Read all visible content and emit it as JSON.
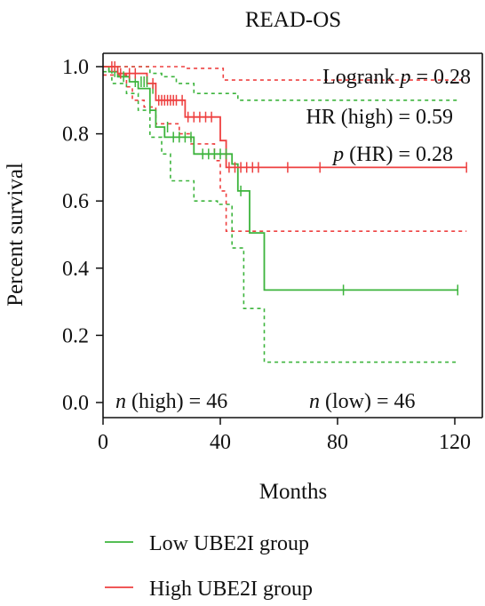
{
  "chart_data": {
    "type": "line",
    "title": "READ-OS",
    "xlabel": "Months",
    "ylabel": "Percent survival",
    "xlim": [
      0,
      125
    ],
    "ylim": [
      0,
      1.05
    ],
    "x_ticks": [
      0,
      40,
      80,
      120
    ],
    "y_ticks": [
      0.0,
      0.2,
      0.4,
      0.6,
      0.8,
      1.0
    ],
    "x_tick_labels": [
      "0",
      "40",
      "80",
      "120"
    ],
    "y_tick_labels": [
      "0.0",
      "0.2",
      "0.4",
      "0.6",
      "0.8",
      "1.0"
    ],
    "grid": false,
    "legend_position": "bottom",
    "annotations": {
      "logrank_prefix": "Logrank ",
      "logrank_p": "p",
      "logrank_suffix": " = 0.28",
      "hr": "HR (high) = 0.59",
      "phr_p": "p",
      "phr_suffix": " (HR) = 0.28",
      "n_high_n": "n",
      "n_high_suffix": " (high) = 46",
      "n_low_n": "n",
      "n_low_suffix": " (low) = 46"
    },
    "series": [
      {
        "name": "Low UBE2I group",
        "color": "#3cb43c",
        "x": [
          0,
          2,
          5,
          9,
          12,
          16,
          18,
          21,
          25,
          31,
          33,
          44,
          46,
          50,
          55,
          121
        ],
        "y": [
          1.0,
          0.985,
          0.97,
          0.955,
          0.935,
          0.87,
          0.82,
          0.79,
          0.79,
          0.74,
          0.74,
          0.71,
          0.63,
          0.505,
          0.335,
          0.335
        ],
        "ci_upper": {
          "x": [
            0,
            5,
            10,
            16,
            20,
            25,
            31,
            46,
            50,
            121
          ],
          "y": [
            1.0,
            1.0,
            1.0,
            0.98,
            0.97,
            0.95,
            0.92,
            0.9,
            0.9,
            0.9
          ]
        },
        "ci_lower": {
          "x": [
            0,
            3,
            8,
            12,
            16,
            20,
            23,
            31,
            39,
            44,
            48,
            51,
            55,
            121
          ],
          "y": [
            0.985,
            0.95,
            0.92,
            0.87,
            0.79,
            0.74,
            0.66,
            0.6,
            0.59,
            0.46,
            0.28,
            0.28,
            0.12,
            0.12
          ]
        },
        "censor_x": [
          4,
          7,
          11,
          13,
          14,
          15,
          17,
          22,
          24,
          26,
          28,
          30,
          34,
          36,
          38,
          40,
          42,
          47,
          82,
          121
        ],
        "censor_y": [
          0.985,
          0.97,
          0.955,
          0.955,
          0.955,
          0.955,
          0.935,
          0.82,
          0.79,
          0.79,
          0.79,
          0.79,
          0.74,
          0.74,
          0.74,
          0.74,
          0.74,
          0.63,
          0.335,
          0.335
        ]
      },
      {
        "name": "High UBE2I group",
        "color": "#ee4040",
        "x": [
          0,
          5,
          15,
          18,
          26,
          28,
          38,
          40,
          42,
          124
        ],
        "y": [
          1.0,
          0.98,
          0.95,
          0.9,
          0.9,
          0.85,
          0.85,
          0.78,
          0.7,
          0.7
        ],
        "ci_upper": {
          "x": [
            0,
            16,
            28,
            40,
            41,
            124
          ],
          "y": [
            1.0,
            1.0,
            0.995,
            0.995,
            0.96,
            0.96
          ]
        },
        "ci_lower": {
          "x": [
            0,
            8,
            10,
            14,
            18,
            26,
            30,
            38,
            40,
            42,
            124
          ],
          "y": [
            0.975,
            0.94,
            0.9,
            0.88,
            0.83,
            0.8,
            0.77,
            0.72,
            0.63,
            0.51,
            0.51
          ]
        },
        "censor_x": [
          3,
          4,
          6,
          9,
          11,
          17,
          19,
          20,
          21,
          22,
          23,
          24,
          25,
          27,
          29,
          31,
          33,
          35,
          37,
          43,
          45,
          47,
          49,
          51,
          53,
          63,
          74,
          124
        ],
        "censor_y": [
          1.0,
          1.0,
          0.98,
          0.98,
          0.98,
          0.95,
          0.9,
          0.9,
          0.9,
          0.9,
          0.9,
          0.9,
          0.9,
          0.9,
          0.85,
          0.85,
          0.85,
          0.85,
          0.85,
          0.7,
          0.7,
          0.7,
          0.7,
          0.7,
          0.7,
          0.7,
          0.7,
          0.7
        ]
      }
    ]
  }
}
